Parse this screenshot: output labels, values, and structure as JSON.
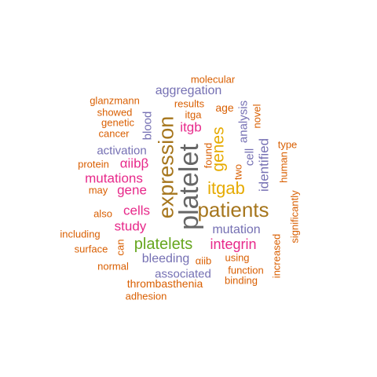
{
  "palette": {
    "orange": "#d95f02",
    "purple": "#7570b3",
    "magenta": "#e7298a",
    "green": "#66a61e",
    "gold": "#e6ab02",
    "brown": "#a6761d",
    "gray": "#666666"
  },
  "words": [
    {
      "text": "platelet",
      "color": "gray",
      "rotated": true
    },
    {
      "text": "expression",
      "color": "brown",
      "rotated": true
    },
    {
      "text": "patients",
      "color": "brown",
      "rotated": false
    },
    {
      "text": "itgab",
      "color": "gold",
      "rotated": false
    },
    {
      "text": "genes",
      "color": "gold",
      "rotated": true
    },
    {
      "text": "platelets",
      "color": "green",
      "rotated": false
    },
    {
      "text": "mutations",
      "color": "magenta",
      "rotated": false
    },
    {
      "text": "integrin",
      "color": "magenta",
      "rotated": false
    },
    {
      "text": "gene",
      "color": "magenta",
      "rotated": false
    },
    {
      "text": "cells",
      "color": "magenta",
      "rotated": false
    },
    {
      "text": "αiibβ",
      "color": "magenta",
      "rotated": false
    },
    {
      "text": "itgb",
      "color": "magenta",
      "rotated": false
    },
    {
      "text": "study",
      "color": "magenta",
      "rotated": false
    },
    {
      "text": "identified",
      "color": "purple",
      "rotated": true
    },
    {
      "text": "mutation",
      "color": "purple",
      "rotated": false
    },
    {
      "text": "bleeding",
      "color": "purple",
      "rotated": false
    },
    {
      "text": "aggregation",
      "color": "purple",
      "rotated": false
    },
    {
      "text": "associated",
      "color": "purple",
      "rotated": false
    },
    {
      "text": "activation",
      "color": "purple",
      "rotated": false
    },
    {
      "text": "blood",
      "color": "purple",
      "rotated": true
    },
    {
      "text": "cell",
      "color": "purple",
      "rotated": true
    },
    {
      "text": "analysis",
      "color": "purple",
      "rotated": true
    },
    {
      "text": "thrombasthenia",
      "color": "orange",
      "rotated": false
    },
    {
      "text": "molecular",
      "color": "orange",
      "rotated": false
    },
    {
      "text": "glanzmann",
      "color": "orange",
      "rotated": false
    },
    {
      "text": "results",
      "color": "orange",
      "rotated": false
    },
    {
      "text": "age",
      "color": "orange",
      "rotated": false
    },
    {
      "text": "showed",
      "color": "orange",
      "rotated": false
    },
    {
      "text": "itga",
      "color": "orange",
      "rotated": false
    },
    {
      "text": "genetic",
      "color": "orange",
      "rotated": false
    },
    {
      "text": "cancer",
      "color": "orange",
      "rotated": false
    },
    {
      "text": "novel",
      "color": "orange",
      "rotated": true
    },
    {
      "text": "two",
      "color": "orange",
      "rotated": true
    },
    {
      "text": "found",
      "color": "orange",
      "rotated": true
    },
    {
      "text": "type",
      "color": "orange",
      "rotated": false
    },
    {
      "text": "protein",
      "color": "orange",
      "rotated": false
    },
    {
      "text": "human",
      "color": "orange",
      "rotated": true
    },
    {
      "text": "may",
      "color": "orange",
      "rotated": false
    },
    {
      "text": "significantly",
      "color": "orange",
      "rotated": true
    },
    {
      "text": "also",
      "color": "orange",
      "rotated": false
    },
    {
      "text": "including",
      "color": "orange",
      "rotated": false
    },
    {
      "text": "can",
      "color": "orange",
      "rotated": true
    },
    {
      "text": "surface",
      "color": "orange",
      "rotated": false
    },
    {
      "text": "αiib",
      "color": "orange",
      "rotated": false
    },
    {
      "text": "using",
      "color": "orange",
      "rotated": false
    },
    {
      "text": "increased",
      "color": "orange",
      "rotated": true
    },
    {
      "text": "normal",
      "color": "orange",
      "rotated": false
    },
    {
      "text": "function",
      "color": "orange",
      "rotated": false
    },
    {
      "text": "binding",
      "color": "orange",
      "rotated": false
    },
    {
      "text": "adhesion",
      "color": "orange",
      "rotated": false
    }
  ]
}
